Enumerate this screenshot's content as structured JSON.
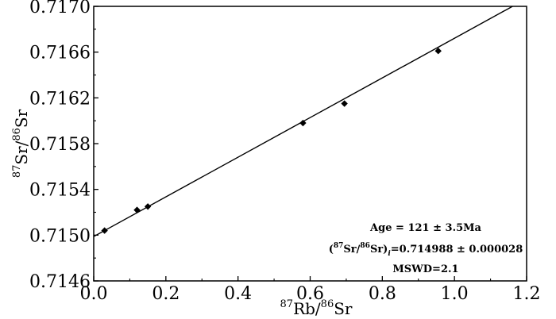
{
  "chart_data": {
    "type": "scatter",
    "xlabel": {
      "sup1": "87",
      "main1": "Rb/",
      "sup2": "86",
      "main2": "Sr"
    },
    "ylabel": {
      "sup1": "87",
      "main1": "Sr/",
      "sup2": "86",
      "main2": "Sr"
    },
    "xlim": [
      0.0,
      1.2
    ],
    "ylim": [
      0.7146,
      0.717
    ],
    "xticks": [
      "0.0",
      "0.2",
      "0.4",
      "0.6",
      "0.8",
      "1.0",
      "1.2"
    ],
    "yticks": [
      "0.7146",
      "0.7150",
      "0.7154",
      "0.7158",
      "0.7162",
      "0.7166",
      "0.7170"
    ],
    "points": [
      {
        "x": 0.03,
        "y": 0.71504
      },
      {
        "x": 0.12,
        "y": 0.71522
      },
      {
        "x": 0.15,
        "y": 0.71525
      },
      {
        "x": 0.58,
        "y": 0.71598
      },
      {
        "x": 0.695,
        "y": 0.71615
      },
      {
        "x": 0.955,
        "y": 0.71661
      }
    ],
    "isochron": {
      "intercept": 0.714988,
      "slope": 0.001733
    },
    "annotations": {
      "age": "Age = 121 ± 3.5Ma",
      "ratio_prefix": "(",
      "ratio_sup1": "87",
      "ratio_mid": "Sr/",
      "ratio_sup2": "86",
      "ratio_end": "Sr)",
      "ratio_sub": "i",
      "ratio_value": "=0.714988 ± 0.000028",
      "mswd": "MSWD=2.1"
    }
  }
}
